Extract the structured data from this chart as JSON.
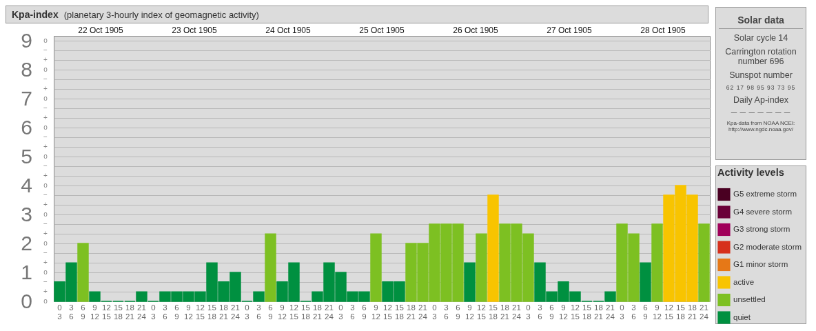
{
  "chart_data": {
    "type": "bar",
    "title": "Kpa-index",
    "subtitle": "(planetary 3-hourly index of geomagnetic activity)",
    "categories": [
      "0 3",
      "3 6",
      "6 9",
      "9 12",
      "12 15",
      "15 18",
      "18 21",
      "21 24",
      "0 3",
      "3 6",
      "6 9",
      "9 12",
      "12 15",
      "15 18",
      "18 21",
      "21 24",
      "0 3",
      "3 6",
      "6 9",
      "9 12",
      "12 15",
      "15 18",
      "18 21",
      "21 24",
      "0 3",
      "3 6",
      "6 9",
      "9 12",
      "12 15",
      "15 18",
      "18 21",
      "21 24",
      "0 3",
      "3 6",
      "6 9",
      "9 12",
      "12 15",
      "15 18",
      "18 21",
      "21 24",
      "0 3",
      "3 6",
      "6 9",
      "9 12",
      "12 15",
      "15 18",
      "18 21",
      "21 24",
      "0 3",
      "3 6",
      "6 9",
      "9 12",
      "12 15",
      "15 18",
      "18 21",
      "21 24"
    ],
    "series": [
      {
        "name": "G5 extreme storm",
        "color": "#4a0022",
        "values": [
          null,
          null,
          null,
          null,
          null,
          null,
          null,
          null,
          null,
          null,
          null,
          null,
          null,
          null,
          null,
          null,
          null,
          null,
          null,
          null,
          null,
          null,
          null,
          null,
          null,
          null,
          null,
          null,
          null,
          null,
          null,
          null,
          null,
          null,
          null,
          null,
          null,
          null,
          null,
          null,
          null,
          null,
          null,
          null,
          null,
          null,
          null,
          null,
          null,
          null,
          null,
          null,
          null,
          null,
          null,
          null
        ]
      },
      {
        "name": "G4 severe storm",
        "color": "#6a0038",
        "values": [
          null,
          null,
          null,
          null,
          null,
          null,
          null,
          null,
          null,
          null,
          null,
          null,
          null,
          null,
          null,
          null,
          null,
          null,
          null,
          null,
          null,
          null,
          null,
          null,
          null,
          null,
          null,
          null,
          null,
          null,
          null,
          null,
          null,
          null,
          null,
          null,
          null,
          null,
          null,
          null,
          null,
          null,
          null,
          null,
          null,
          null,
          null,
          null,
          null,
          null,
          null,
          null,
          null,
          null,
          null,
          null
        ]
      },
      {
        "name": "G3 strong storm",
        "color": "#a0005a",
        "values": [
          null,
          null,
          null,
          null,
          null,
          null,
          null,
          null,
          null,
          null,
          null,
          null,
          null,
          null,
          null,
          null,
          null,
          null,
          null,
          null,
          null,
          null,
          null,
          null,
          null,
          null,
          null,
          null,
          null,
          null,
          null,
          null,
          null,
          null,
          null,
          null,
          null,
          null,
          null,
          null,
          null,
          null,
          null,
          null,
          null,
          null,
          null,
          null,
          null,
          null,
          null,
          null,
          null,
          null,
          null,
          null
        ]
      },
      {
        "name": "G2 moderate storm",
        "color": "#d6301c",
        "values": [
          null,
          null,
          null,
          null,
          null,
          null,
          null,
          null,
          null,
          null,
          null,
          null,
          null,
          null,
          null,
          null,
          null,
          null,
          null,
          null,
          null,
          null,
          null,
          null,
          null,
          null,
          null,
          null,
          null,
          null,
          null,
          null,
          null,
          null,
          null,
          null,
          null,
          null,
          null,
          null,
          null,
          null,
          null,
          null,
          null,
          null,
          null,
          null,
          null,
          null,
          null,
          null,
          null,
          null,
          null,
          null
        ]
      },
      {
        "name": "G1 minor storm",
        "color": "#e67817",
        "values": [
          null,
          null,
          null,
          null,
          null,
          null,
          null,
          null,
          null,
          null,
          null,
          null,
          null,
          null,
          null,
          null,
          null,
          null,
          null,
          null,
          null,
          null,
          null,
          null,
          null,
          null,
          null,
          null,
          null,
          null,
          null,
          null,
          null,
          null,
          null,
          null,
          null,
          null,
          null,
          null,
          null,
          null,
          null,
          null,
          null,
          null,
          null,
          null,
          null,
          null,
          null,
          null,
          null,
          null,
          null,
          null
        ]
      },
      {
        "name": "active",
        "color": "#f8c400",
        "values": [
          null,
          null,
          null,
          null,
          null,
          null,
          null,
          null,
          null,
          null,
          null,
          null,
          null,
          null,
          null,
          null,
          null,
          null,
          null,
          null,
          null,
          null,
          null,
          null,
          null,
          null,
          null,
          null,
          null,
          null,
          null,
          null,
          null,
          null,
          null,
          null,
          null,
          3.67,
          null,
          null,
          null,
          null,
          null,
          null,
          null,
          null,
          null,
          null,
          null,
          null,
          null,
          null,
          3.67,
          4,
          3.67,
          null
        ]
      },
      {
        "name": "unsettled",
        "color": "#7dc022",
        "values": [
          null,
          null,
          2,
          null,
          null,
          null,
          null,
          null,
          null,
          null,
          null,
          null,
          null,
          null,
          null,
          null,
          null,
          null,
          2.33,
          null,
          null,
          null,
          null,
          null,
          null,
          null,
          null,
          2.33,
          null,
          null,
          2,
          2,
          2.67,
          2.67,
          2.67,
          null,
          2.33,
          null,
          2.67,
          2.67,
          2.33,
          null,
          null,
          null,
          null,
          null,
          null,
          null,
          2.67,
          2.33,
          null,
          2.67,
          null,
          null,
          null,
          2.67
        ]
      },
      {
        "name": "quiet",
        "color": "#009040",
        "values": [
          0.67,
          1.33,
          null,
          0.33,
          0,
          0,
          0,
          0.33,
          0,
          0.33,
          0.33,
          0.33,
          0.33,
          1.33,
          0.67,
          1,
          0,
          0.33,
          null,
          0.67,
          1.33,
          0,
          0.33,
          1.33,
          1,
          0.33,
          0.33,
          null,
          0.67,
          0.67,
          null,
          null,
          null,
          null,
          null,
          1.33,
          null,
          null,
          null,
          null,
          null,
          1.33,
          0.33,
          0.67,
          0.33,
          0,
          0,
          0.33,
          null,
          null,
          1.33,
          null,
          null,
          null,
          null,
          null
        ]
      }
    ],
    "ylim": [
      0,
      9.17
    ],
    "yticks": [
      0,
      {
        "value": 0.33,
        "label": null
      },
      {
        "value": 0.67,
        "label": null
      },
      1,
      {
        "value": 1.33,
        "label": null
      },
      {
        "value": 1.67,
        "label": null
      },
      2,
      {
        "value": 2.33,
        "label": null
      },
      {
        "value": 2.67,
        "label": null
      },
      3,
      {
        "value": 3.33,
        "label": null
      },
      {
        "value": 3.67,
        "label": null
      },
      4,
      {
        "value": 4.33,
        "label": null
      },
      {
        "value": 4.67,
        "label": null
      },
      5,
      {
        "value": 5.33,
        "label": null
      },
      {
        "value": 5.67,
        "label": null
      },
      6,
      {
        "value": 6.33,
        "label": null
      },
      {
        "value": 6.67,
        "label": null
      },
      7,
      {
        "value": 7.33,
        "label": null
      },
      {
        "value": 7.67,
        "label": null
      },
      8,
      {
        "value": 8.33,
        "label": null
      },
      {
        "value": 8.67,
        "label": null
      },
      9
    ],
    "grid": "y",
    "legend": "right",
    "legend_title": "Activity levels",
    "annotations": [
      "22 Oct 1905",
      "23 Oct 1905",
      "24 Oct 1905",
      "25 Oct 1905",
      "26 Oct 1905",
      "27 Oct 1905",
      "28 Oct 1905",
      "Solar data",
      "Solar cycle 14",
      "Carrington rotation number 696",
      "Sunspot number",
      "62 17 98 95 93 73 95",
      "Daily Ap-index",
      "— — — — — — —",
      "Kpa-data from NOAA NCEI: http://www.ngdc.noaa.gov/",
      "o",
      "+",
      "−",
      "o",
      "+",
      "−",
      "o",
      "+",
      "−",
      "o",
      "+",
      "−",
      "o",
      "+",
      "−",
      "o",
      "+",
      "−",
      "o",
      "+",
      "−",
      "o",
      "+",
      "−",
      "o",
      "+",
      "−",
      "o"
    ]
  }
}
